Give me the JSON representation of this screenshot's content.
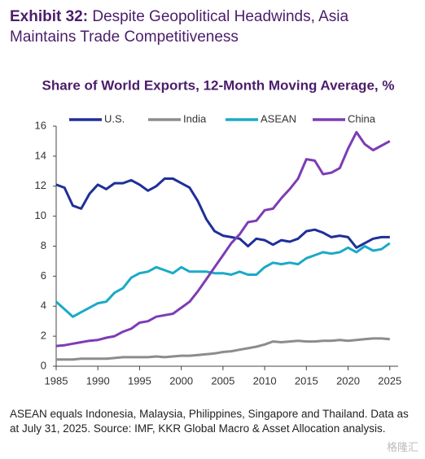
{
  "exhibit_label": "Exhibit 32:",
  "title": "Despite Geopolitical Headwinds, Asia Maintains Trade Competitiveness",
  "chart_data": {
    "type": "line",
    "title": "Share of World Exports, 12-Month Moving Average, %",
    "x": [
      1985,
      1986,
      1987,
      1988,
      1989,
      1990,
      1991,
      1992,
      1993,
      1994,
      1995,
      1996,
      1997,
      1998,
      1999,
      2000,
      2001,
      2002,
      2003,
      2004,
      2005,
      2006,
      2007,
      2008,
      2009,
      2010,
      2011,
      2012,
      2013,
      2014,
      2015,
      2016,
      2017,
      2018,
      2019,
      2020,
      2021,
      2022,
      2023,
      2024,
      2025
    ],
    "series": [
      {
        "name": "U.S.",
        "color": "#1f2f99",
        "values": [
          12.1,
          11.9,
          10.7,
          10.5,
          11.5,
          12.1,
          11.8,
          12.2,
          12.2,
          12.4,
          12.1,
          11.7,
          12.0,
          12.5,
          12.5,
          12.2,
          11.9,
          11.0,
          9.8,
          9.0,
          8.7,
          8.6,
          8.5,
          8.0,
          8.5,
          8.4,
          8.1,
          8.4,
          8.3,
          8.5,
          9.0,
          9.1,
          8.9,
          8.6,
          8.7,
          8.6,
          7.9,
          8.2,
          8.5,
          8.6,
          8.6
        ]
      },
      {
        "name": "India",
        "color": "#8c8c8c",
        "values": [
          0.45,
          0.45,
          0.45,
          0.5,
          0.5,
          0.5,
          0.5,
          0.55,
          0.6,
          0.6,
          0.6,
          0.6,
          0.65,
          0.6,
          0.65,
          0.7,
          0.7,
          0.75,
          0.8,
          0.85,
          0.95,
          1.0,
          1.1,
          1.2,
          1.3,
          1.45,
          1.65,
          1.6,
          1.65,
          1.7,
          1.65,
          1.65,
          1.7,
          1.7,
          1.75,
          1.7,
          1.75,
          1.8,
          1.85,
          1.85,
          1.8
        ]
      },
      {
        "name": "ASEAN",
        "color": "#1aaac8",
        "values": [
          4.3,
          3.8,
          3.3,
          3.6,
          3.9,
          4.2,
          4.3,
          4.9,
          5.2,
          5.9,
          6.2,
          6.3,
          6.6,
          6.4,
          6.2,
          6.6,
          6.3,
          6.3,
          6.3,
          6.2,
          6.2,
          6.1,
          6.3,
          6.1,
          6.1,
          6.6,
          6.9,
          6.8,
          6.9,
          6.8,
          7.2,
          7.4,
          7.6,
          7.5,
          7.6,
          7.9,
          7.6,
          8.0,
          7.7,
          7.8,
          8.2
        ]
      },
      {
        "name": "China",
        "color": "#7d3cb5",
        "values": [
          1.35,
          1.4,
          1.5,
          1.6,
          1.7,
          1.75,
          1.9,
          2.0,
          2.3,
          2.5,
          2.9,
          3.0,
          3.3,
          3.4,
          3.5,
          3.9,
          4.3,
          5.0,
          5.8,
          6.6,
          7.4,
          8.2,
          8.8,
          9.6,
          9.7,
          10.4,
          10.5,
          11.2,
          11.8,
          12.5,
          13.8,
          13.7,
          12.8,
          12.9,
          13.2,
          14.5,
          15.6,
          14.8,
          14.4,
          14.7,
          15.0
        ]
      }
    ],
    "xlim": [
      1985,
      2026
    ],
    "xticks": [
      1985,
      1990,
      1995,
      2000,
      2005,
      2010,
      2015,
      2020,
      2025
    ],
    "ylim": [
      0,
      16
    ],
    "yticks": [
      0,
      2,
      4,
      6,
      8,
      10,
      12,
      14,
      16
    ],
    "grid": false,
    "legend": "top"
  },
  "footnote": "ASEAN equals Indonesia, Malaysia, Philippines, Singapore and Thailand. Data as at July 31, 2025. Source: IMF, KKR Global Macro & Asset Allocation analysis.",
  "watermark": "格隆汇"
}
